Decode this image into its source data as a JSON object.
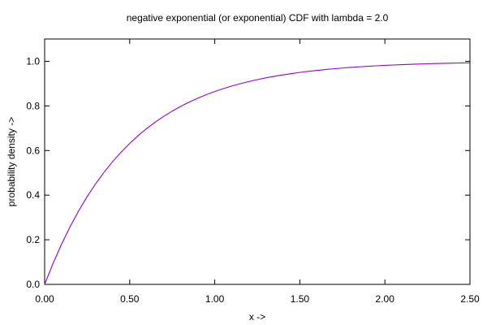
{
  "colors": {
    "background": "#ffffff",
    "axis": "#000000",
    "series": "#9400d3"
  },
  "chart_data": {
    "type": "line",
    "title": "negative exponential (or exponential) CDF with lambda = 2.0",
    "xlabel": "x ->",
    "ylabel": "probability density ->",
    "xlim": [
      0,
      2.5
    ],
    "ylim": [
      0,
      1.1
    ],
    "grid": false,
    "x_ticks": [
      {
        "value": 0.0,
        "label": "0.00"
      },
      {
        "value": 0.5,
        "label": "0.50"
      },
      {
        "value": 1.0,
        "label": "1.00"
      },
      {
        "value": 1.5,
        "label": "1.50"
      },
      {
        "value": 2.0,
        "label": "2.00"
      },
      {
        "value": 2.5,
        "label": "2.50"
      }
    ],
    "y_ticks": [
      {
        "value": 0.0,
        "label": "0.0"
      },
      {
        "value": 0.2,
        "label": "0.2"
      },
      {
        "value": 0.4,
        "label": "0.4"
      },
      {
        "value": 0.6,
        "label": "0.6"
      },
      {
        "value": 0.8,
        "label": "0.8"
      },
      {
        "value": 1.0,
        "label": "1.0"
      }
    ],
    "series": [
      {
        "x": [
          0.0,
          0.05,
          0.1,
          0.15,
          0.2,
          0.25,
          0.3,
          0.35,
          0.4,
          0.45,
          0.5,
          0.55,
          0.6,
          0.65,
          0.7,
          0.75,
          0.8,
          0.85,
          0.9,
          0.95,
          1.0,
          1.05,
          1.1,
          1.15,
          1.2,
          1.25,
          1.3,
          1.35,
          1.4,
          1.45,
          1.5,
          1.55,
          1.6,
          1.65,
          1.7,
          1.75,
          1.8,
          1.85,
          1.9,
          1.95,
          2.0,
          2.05,
          2.1,
          2.15,
          2.2,
          2.25,
          2.3,
          2.35,
          2.4,
          2.45,
          2.5
        ],
        "values": [
          0.0,
          0.0952,
          0.1813,
          0.2592,
          0.3297,
          0.3935,
          0.4512,
          0.5034,
          0.5507,
          0.5934,
          0.6321,
          0.6671,
          0.6988,
          0.7275,
          0.7534,
          0.7769,
          0.7981,
          0.8173,
          0.8347,
          0.8504,
          0.8647,
          0.8775,
          0.8892,
          0.8997,
          0.9093,
          0.9179,
          0.9257,
          0.9328,
          0.9392,
          0.945,
          0.9502,
          0.955,
          0.9592,
          0.9631,
          0.9666,
          0.9698,
          0.9727,
          0.9753,
          0.9776,
          0.9798,
          0.9817,
          0.9834,
          0.985,
          0.9864,
          0.9877,
          0.9889,
          0.99,
          0.991,
          0.9918,
          0.9926,
          0.9933
        ]
      }
    ]
  }
}
